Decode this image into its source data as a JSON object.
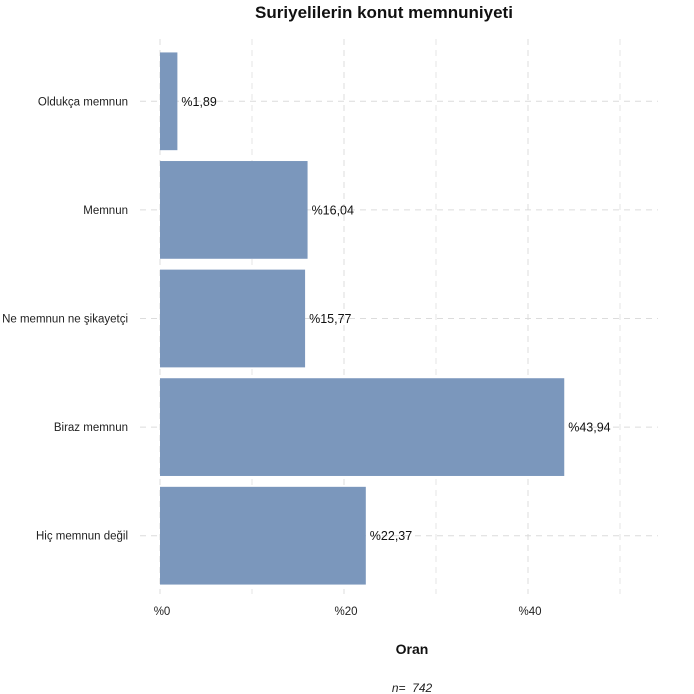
{
  "chart_data": {
    "type": "bar",
    "orientation": "horizontal",
    "title": "Suriyelilerin konut memnuniyeti",
    "xlabel": "Oran",
    "ylabel": "",
    "caption": "n=  742",
    "categories": [
      "Oldukça memnun",
      "Memnun",
      "Ne memnun ne şikayetçi",
      "Biraz memnun",
      "Hiç memnun değil"
    ],
    "values": [
      1.89,
      16.04,
      15.77,
      43.94,
      22.37
    ],
    "data_labels": [
      "%1,89",
      "%16,04",
      "%15,77",
      "%43,94",
      "%22,37"
    ],
    "x_ticks": [
      0,
      20,
      40
    ],
    "x_tick_labels": [
      "%0",
      "%20",
      "%40"
    ],
    "xlim": [
      0,
      50
    ],
    "grid": true,
    "legend": "none",
    "bar_color": "#7b97bc",
    "grid_color": "#dcdcdc"
  }
}
